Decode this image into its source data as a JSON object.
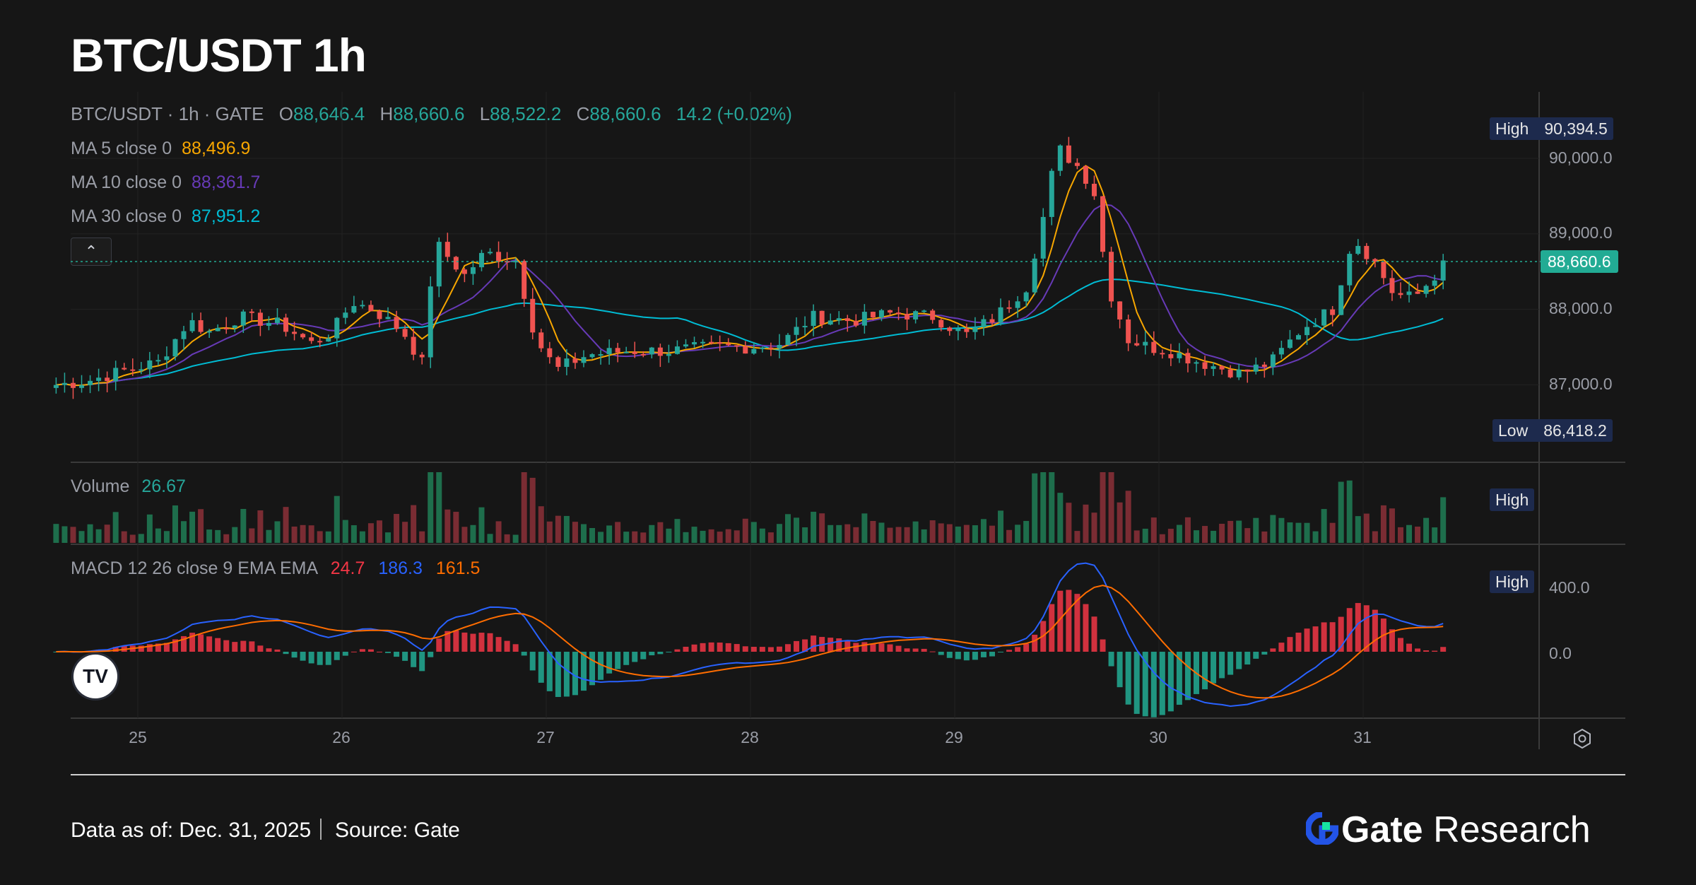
{
  "title": "BTC/USDT 1h",
  "header": {
    "symbol": "BTC/USDT · 1h · GATE",
    "open_label": "O",
    "open": "88,646.4",
    "high_label": "H",
    "high": "88,660.6",
    "low_label": "L",
    "low": "88,522.2",
    "close_label": "C",
    "close": "88,660.6",
    "change": "14.2 (+0.02%)"
  },
  "indicators": {
    "ma5": {
      "label": "MA 5 close 0",
      "value": "88,496.9",
      "color": "#f7a600"
    },
    "ma10": {
      "label": "MA 10 close 0",
      "value": "88,361.7",
      "color": "#673ab7"
    },
    "ma30": {
      "label": "MA 30 close 0",
      "value": "87,951.2",
      "color": "#00bcd4"
    }
  },
  "collapse_icon": "chevron-up-icon",
  "badges": {
    "high_label": "High",
    "high_value": "90,394.5",
    "low_label": "Low",
    "low_value": "86,418.2",
    "current_price": "88,660.6",
    "volume_high": "High",
    "macd_high": "High"
  },
  "volume": {
    "label": "Volume",
    "value": "26.67"
  },
  "macd": {
    "label": "MACD 12 26 close 9 EMA EMA",
    "hist": "24.7",
    "macd": "186.3",
    "signal": "161.5",
    "hist_color": "#f23645",
    "macd_color": "#2962ff",
    "signal_color": "#ff6d00"
  },
  "axis": {
    "price_ticks": [
      "90,000.0",
      "89,000.0",
      "88,000.0",
      "87,000.0"
    ],
    "macd_ticks": [
      "400.0",
      "0.0"
    ],
    "x_ticks": [
      "25",
      "26",
      "27",
      "28",
      "29",
      "30",
      "31"
    ]
  },
  "colors": {
    "up": "#26a69a",
    "down": "#ef5350",
    "background": "#161616"
  },
  "footer": {
    "data_as_of": "Data as of: Dec. 31, 2025",
    "source": "Source:  Gate",
    "brand_gate": "Gate",
    "brand_research": "Research",
    "brand_icon": "gate-logo-icon"
  },
  "chart_data": {
    "type": "candlestick",
    "title": "BTC/USDT 1h",
    "x_unit": "day of December 2025 (hourly bars)",
    "ylim": [
      86418.2,
      90394.5
    ],
    "grid": true,
    "anchors": [
      [
        24.6,
        87000
      ],
      [
        24.75,
        87050
      ],
      [
        24.95,
        87200
      ],
      [
        25.1,
        87300
      ],
      [
        25.25,
        87850
      ],
      [
        25.35,
        87700
      ],
      [
        25.5,
        87900
      ],
      [
        25.7,
        87800
      ],
      [
        25.85,
        87550
      ],
      [
        25.95,
        87700
      ],
      [
        26.05,
        88100
      ],
      [
        26.15,
        88000
      ],
      [
        26.3,
        87700
      ],
      [
        26.4,
        87250
      ],
      [
        26.45,
        88900
      ],
      [
        26.6,
        88450
      ],
      [
        26.7,
        88750
      ],
      [
        26.85,
        88650
      ],
      [
        26.95,
        87600
      ],
      [
        27.05,
        87200
      ],
      [
        27.2,
        87400
      ],
      [
        27.4,
        87450
      ],
      [
        27.6,
        87450
      ],
      [
        27.8,
        87500
      ],
      [
        28.0,
        87500
      ],
      [
        28.15,
        87550
      ],
      [
        28.3,
        87900
      ],
      [
        28.5,
        87850
      ],
      [
        28.7,
        87950
      ],
      [
        28.9,
        87900
      ],
      [
        29.05,
        87650
      ],
      [
        29.2,
        87900
      ],
      [
        29.35,
        88300
      ],
      [
        29.45,
        89400
      ],
      [
        29.5,
        90150
      ],
      [
        29.6,
        89900
      ],
      [
        29.68,
        89600
      ],
      [
        29.75,
        88300
      ],
      [
        29.85,
        87600
      ],
      [
        29.95,
        87500
      ],
      [
        30.05,
        87450
      ],
      [
        30.2,
        87300
      ],
      [
        30.4,
        87150
      ],
      [
        30.55,
        87300
      ],
      [
        30.7,
        87750
      ],
      [
        30.85,
        88000
      ],
      [
        30.95,
        88950
      ],
      [
        31.05,
        88650
      ],
      [
        31.15,
        88200
      ],
      [
        31.25,
        88150
      ],
      [
        31.35,
        88450
      ],
      [
        31.42,
        88660.6
      ]
    ],
    "ma5_last": 88496.9,
    "ma10_last": 88361.7,
    "ma30_last": 87951.2,
    "volume_last": 26.67,
    "macd_last": {
      "hist": 24.7,
      "macd": 186.3,
      "signal": 161.5
    }
  }
}
